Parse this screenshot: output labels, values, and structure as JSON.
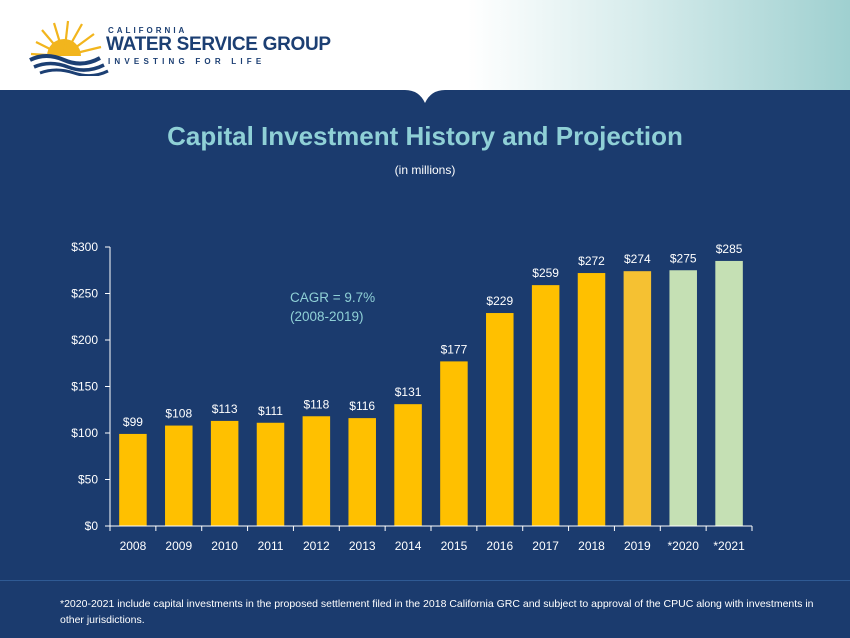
{
  "header": {
    "brand_top": "CALIFORNIA",
    "brand_main": "WATER SERVICE GROUP",
    "brand_tagline": "INVESTING FOR LIFE"
  },
  "chart_data": {
    "type": "bar",
    "title": "Capital Investment History and Projection",
    "subtitle": "(in millions)",
    "categories": [
      "2008",
      "2009",
      "2010",
      "2011",
      "2012",
      "2013",
      "2014",
      "2015",
      "2016",
      "2017",
      "2018",
      "2019",
      "*2020",
      "*2021"
    ],
    "values": [
      99,
      108,
      113,
      111,
      118,
      116,
      131,
      177,
      229,
      259,
      272,
      274,
      275,
      285
    ],
    "data_labels": [
      "$99",
      "$108",
      "$113",
      "$111",
      "$118",
      "$116",
      "$131",
      "$177",
      "$229",
      "$259",
      "$272",
      "$274",
      "$275",
      "$285"
    ],
    "bar_colors": [
      "#ffc000",
      "#ffc000",
      "#ffc000",
      "#ffc000",
      "#ffc000",
      "#ffc000",
      "#ffc000",
      "#ffc000",
      "#ffc000",
      "#ffc000",
      "#ffc000",
      "#f5c132",
      "#c5e0b4",
      "#c5e0b4"
    ],
    "ylim": [
      0,
      300
    ],
    "y_ticks": [
      0,
      50,
      100,
      150,
      200,
      250,
      300
    ],
    "y_tick_labels": [
      "$0",
      "$50",
      "$100",
      "$150",
      "$200",
      "$250",
      "$300"
    ],
    "xlabel": "",
    "ylabel": "",
    "grid": false,
    "annotation": {
      "line1": "CAGR = 9.7%",
      "line2": "(2008-2019)"
    }
  },
  "footnote": "*2020-2021 include capital investments in the proposed settlement filed in the 2018 California GRC and subject to approval of the CPUC along with investments in other jurisdictions.",
  "colors": {
    "background": "#1b3b6e",
    "title": "#8fd0d6",
    "annotation": "#8fd0d6",
    "bar_history": "#ffc000",
    "bar_projection": "#c5e0b4"
  }
}
